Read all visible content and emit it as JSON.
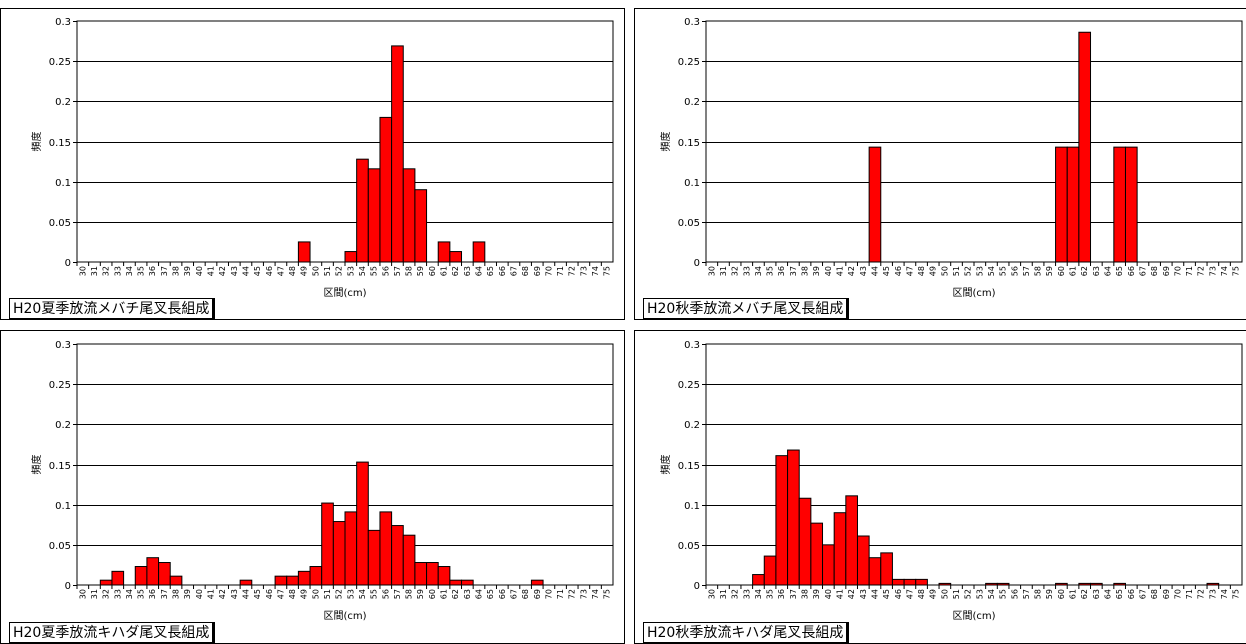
{
  "chart_data": [
    {
      "type": "bar",
      "title": "H20夏季放流メバチ尾叉長組成",
      "xlabel": "区間(cm)",
      "ylabel": "頻度",
      "ylim": [
        0,
        0.3
      ],
      "yticks": [
        "0",
        "0.05",
        "0.1",
        "0.15",
        "0.2",
        "0.25",
        "0.3"
      ],
      "grid": true,
      "categories": [
        "30",
        "31",
        "32",
        "33",
        "34",
        "35",
        "36",
        "37",
        "38",
        "39",
        "40",
        "41",
        "42",
        "43",
        "44",
        "45",
        "46",
        "47",
        "48",
        "49",
        "50",
        "51",
        "52",
        "53",
        "54",
        "55",
        "56",
        "57",
        "58",
        "59",
        "60",
        "61",
        "62",
        "63",
        "64",
        "65",
        "66",
        "67",
        "68",
        "69",
        "70",
        "71",
        "72",
        "73",
        "74",
        "75"
      ],
      "values": [
        0,
        0,
        0,
        0,
        0,
        0,
        0,
        0,
        0,
        0,
        0,
        0,
        0,
        0,
        0,
        0,
        0,
        0,
        0,
        0.025,
        0,
        0,
        0,
        0.013,
        0.128,
        0.116,
        0.18,
        0.269,
        0.116,
        0.09,
        0,
        0.025,
        0.013,
        0,
        0.025,
        0,
        0,
        0,
        0,
        0,
        0,
        0,
        0,
        0,
        0,
        0
      ],
      "bar_color": "#ff0000"
    },
    {
      "type": "bar",
      "title": "H20秋季放流メバチ尾叉長組成",
      "xlabel": "区間(cm)",
      "ylabel": "頻度",
      "ylim": [
        0,
        0.3
      ],
      "yticks": [
        "0",
        "0.05",
        "0.1",
        "0.15",
        "0.2",
        "0.25",
        "0.3"
      ],
      "grid": true,
      "categories": [
        "30",
        "31",
        "32",
        "33",
        "34",
        "35",
        "36",
        "37",
        "38",
        "39",
        "40",
        "41",
        "42",
        "43",
        "44",
        "45",
        "46",
        "47",
        "48",
        "49",
        "50",
        "51",
        "52",
        "53",
        "54",
        "55",
        "56",
        "57",
        "58",
        "59",
        "60",
        "61",
        "62",
        "63",
        "64",
        "65",
        "66",
        "67",
        "68",
        "69",
        "70",
        "71",
        "72",
        "73",
        "74",
        "75"
      ],
      "values": [
        0,
        0,
        0,
        0,
        0,
        0,
        0,
        0,
        0,
        0,
        0,
        0,
        0,
        0,
        0.143,
        0,
        0,
        0,
        0,
        0,
        0,
        0,
        0,
        0,
        0,
        0,
        0,
        0,
        0,
        0,
        0.143,
        0.143,
        0.286,
        0,
        0,
        0.143,
        0.143,
        0,
        0,
        0,
        0,
        0,
        0,
        0,
        0,
        0
      ],
      "bar_color": "#ff0000"
    },
    {
      "type": "bar",
      "title": "H20夏季放流キハダ尾叉長組成",
      "xlabel": "区間(cm)",
      "ylabel": "頻度",
      "ylim": [
        0,
        0.3
      ],
      "yticks": [
        "0",
        "0.05",
        "0.1",
        "0.15",
        "0.2",
        "0.25",
        "0.3"
      ],
      "grid": true,
      "categories": [
        "30",
        "31",
        "32",
        "33",
        "34",
        "35",
        "36",
        "37",
        "38",
        "39",
        "40",
        "41",
        "42",
        "43",
        "44",
        "45",
        "46",
        "47",
        "48",
        "49",
        "50",
        "51",
        "52",
        "53",
        "54",
        "55",
        "56",
        "57",
        "58",
        "59",
        "60",
        "61",
        "62",
        "63",
        "64",
        "65",
        "66",
        "67",
        "68",
        "69",
        "70",
        "71",
        "72",
        "73",
        "74",
        "75"
      ],
      "values": [
        0,
        0,
        0.006,
        0.017,
        0,
        0.023,
        0.034,
        0.028,
        0.011,
        0,
        0,
        0,
        0,
        0,
        0.006,
        0,
        0,
        0.011,
        0.011,
        0.017,
        0.023,
        0.102,
        0.079,
        0.091,
        0.153,
        0.068,
        0.091,
        0.074,
        0.062,
        0.028,
        0.028,
        0.023,
        0.006,
        0.006,
        0,
        0,
        0,
        0,
        0,
        0.006,
        0,
        0,
        0,
        0,
        0,
        0
      ],
      "bar_color": "#ff0000"
    },
    {
      "type": "bar",
      "title": "H20秋季放流キハダ尾叉長組成",
      "xlabel": "区間(cm)",
      "ylabel": "頻度",
      "ylim": [
        0,
        0.3
      ],
      "yticks": [
        "0",
        "0.05",
        "0.1",
        "0.15",
        "0.2",
        "0.25",
        "0.3"
      ],
      "grid": true,
      "categories": [
        "30",
        "31",
        "32",
        "33",
        "34",
        "35",
        "36",
        "37",
        "38",
        "39",
        "40",
        "41",
        "42",
        "43",
        "44",
        "45",
        "46",
        "47",
        "48",
        "49",
        "50",
        "51",
        "52",
        "53",
        "54",
        "55",
        "56",
        "57",
        "58",
        "59",
        "60",
        "61",
        "62",
        "63",
        "64",
        "65",
        "66",
        "67",
        "68",
        "69",
        "70",
        "71",
        "72",
        "73",
        "74",
        "75"
      ],
      "values": [
        0,
        0,
        0,
        0,
        0.013,
        0.036,
        0.161,
        0.168,
        0.108,
        0.077,
        0.05,
        0.09,
        0.111,
        0.061,
        0.034,
        0.04,
        0.007,
        0.007,
        0.007,
        0,
        0.002,
        0,
        0,
        0,
        0.002,
        0.002,
        0,
        0,
        0,
        0,
        0.002,
        0,
        0.002,
        0.002,
        0,
        0.002,
        0,
        0,
        0,
        0,
        0,
        0,
        0,
        0.002,
        0,
        0
      ],
      "bar_color": "#ff0000"
    }
  ]
}
